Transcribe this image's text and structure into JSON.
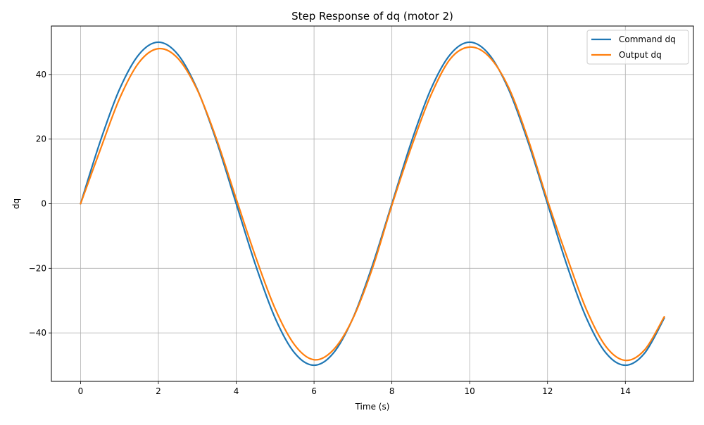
{
  "chart_data": {
    "type": "line",
    "title": "Step Response of dq (motor 2)",
    "xlabel": "Time (s)",
    "ylabel": "dq",
    "xlim": [
      -0.75,
      15.75
    ],
    "ylim": [
      -55,
      55
    ],
    "xticks": [
      0,
      2,
      4,
      6,
      8,
      10,
      12,
      14
    ],
    "yticks": [
      -40,
      -20,
      0,
      20,
      40
    ],
    "xtick_labels": [
      "0",
      "2",
      "4",
      "6",
      "8",
      "10",
      "12",
      "14"
    ],
    "ytick_labels": [
      "−40",
      "−20",
      "0",
      "20",
      "40"
    ],
    "grid": true,
    "legend_position": "top-right",
    "series": [
      {
        "name": "Command dq",
        "color": "#1f77b4",
        "x": [
          0,
          0.5,
          1,
          1.5,
          2,
          2.5,
          3,
          3.5,
          4,
          4.5,
          5,
          5.5,
          6,
          6.5,
          7,
          7.5,
          8,
          8.5,
          9,
          9.5,
          10,
          10.5,
          11,
          11.5,
          12,
          12.5,
          13,
          13.5,
          14,
          14.5,
          15
        ],
        "y": [
          0,
          19.1,
          35.4,
          46.2,
          50,
          46.2,
          35.4,
          19.1,
          0,
          -19.1,
          -35.4,
          -46.2,
          -50,
          -46.2,
          -35.4,
          -19.1,
          0,
          19.1,
          35.4,
          46.2,
          50,
          46.2,
          35.4,
          19.1,
          0,
          -19.1,
          -35.4,
          -46.2,
          -50,
          -46.2,
          -35.4
        ]
      },
      {
        "name": "Output dq",
        "color": "#ff7f0e",
        "x": [
          0,
          0.5,
          1,
          1.5,
          2,
          2.5,
          3,
          3.5,
          4,
          4.5,
          5,
          5.5,
          6,
          6.5,
          7,
          7.5,
          8,
          8.5,
          9,
          9.5,
          10,
          10.5,
          11,
          11.5,
          12,
          12.5,
          13,
          13.5,
          14,
          14.5,
          15
        ],
        "y": [
          0,
          16.5,
          32.5,
          43.7,
          48,
          45,
          35.2,
          19.8,
          1.5,
          -16.5,
          -32.5,
          -43.7,
          -48.3,
          -45.2,
          -35.5,
          -20,
          -0.5,
          17.5,
          33.5,
          44.8,
          48.5,
          45.5,
          36,
          20,
          1,
          -16.5,
          -32.8,
          -44.2,
          -48.5,
          -45.2,
          -35
        ]
      }
    ]
  }
}
